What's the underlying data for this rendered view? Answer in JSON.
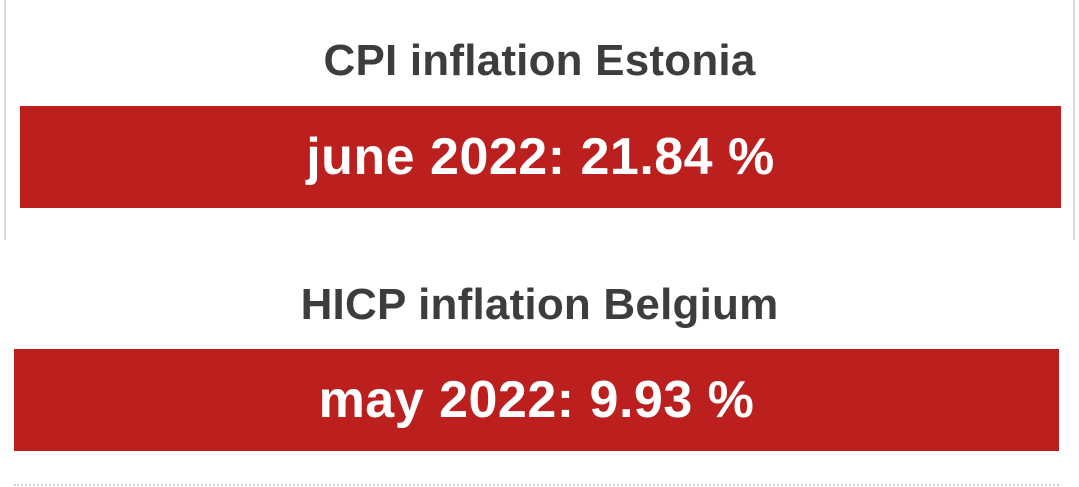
{
  "cards": [
    {
      "title": "CPI inflation Estonia",
      "value": "june 2022: 21.84 %"
    },
    {
      "title": "HICP inflation Belgium",
      "value": "may 2022: 9.93 %"
    }
  ],
  "colors": {
    "title_text": "#3d3d3d",
    "value_background": "#bb1f1e",
    "value_text": "#ffffff"
  }
}
